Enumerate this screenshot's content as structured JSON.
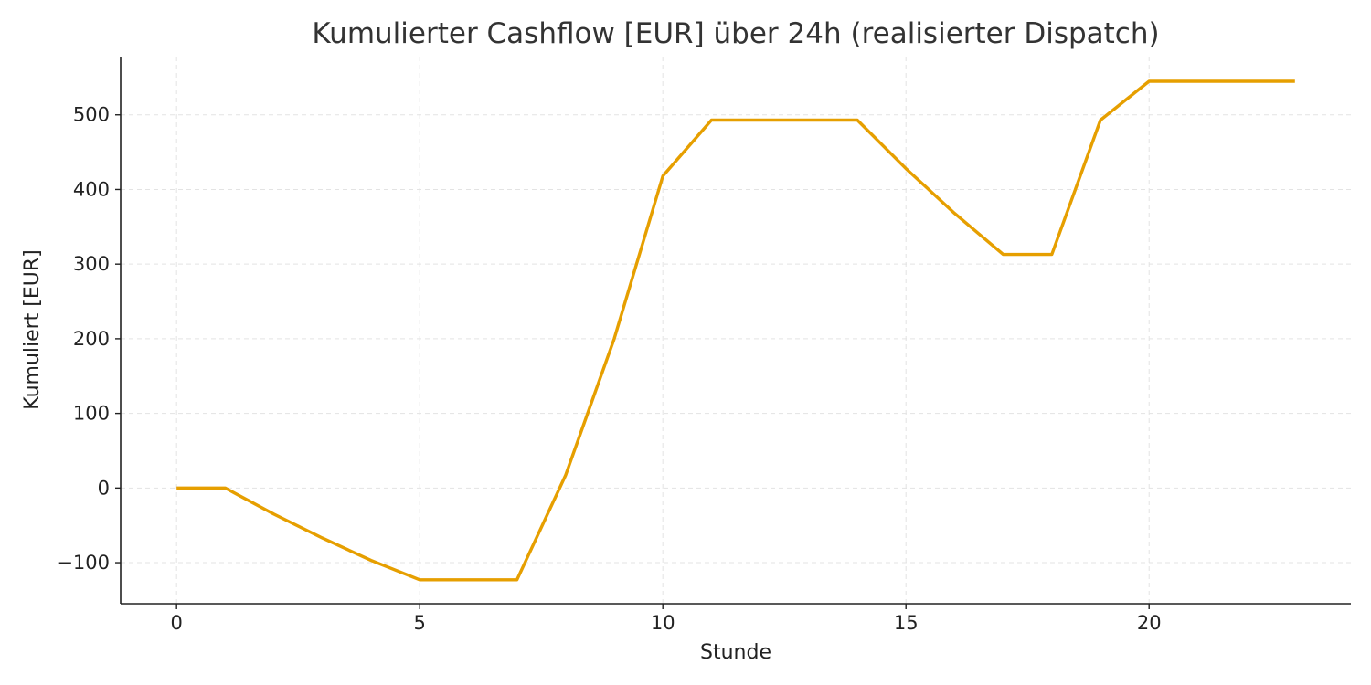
{
  "chart_data": {
    "type": "line",
    "title": "Kumulierter Cashflow [EUR] über 24h (realisierter Dispatch)",
    "xlabel": "Stunde",
    "ylabel": "Kumuliert [EUR]",
    "xlim": [
      -1.15,
      24.15
    ],
    "ylim": [
      -155,
      578
    ],
    "x_ticks": [
      0,
      5,
      10,
      15,
      20
    ],
    "x_tick_labels": [
      "0",
      "5",
      "10",
      "15",
      "20"
    ],
    "y_ticks": [
      -100,
      0,
      100,
      200,
      300,
      400,
      500
    ],
    "y_tick_labels": [
      "−100",
      "0",
      "100",
      "200",
      "300",
      "400",
      "500"
    ],
    "grid": true,
    "legend": "none",
    "series": [
      {
        "color": "#e69f00",
        "x": [
          0,
          1,
          2,
          3,
          4,
          5,
          6,
          7,
          8,
          9,
          10,
          11,
          12,
          13,
          14,
          15,
          16,
          17,
          18,
          19,
          20,
          21,
          22,
          23
        ],
        "values": [
          0,
          0,
          -35,
          -67,
          -97,
          -123,
          -123,
          -123,
          17,
          200,
          418,
          493,
          493,
          493,
          493,
          428,
          368,
          313,
          313,
          493,
          545,
          545,
          545,
          545
        ]
      }
    ]
  }
}
